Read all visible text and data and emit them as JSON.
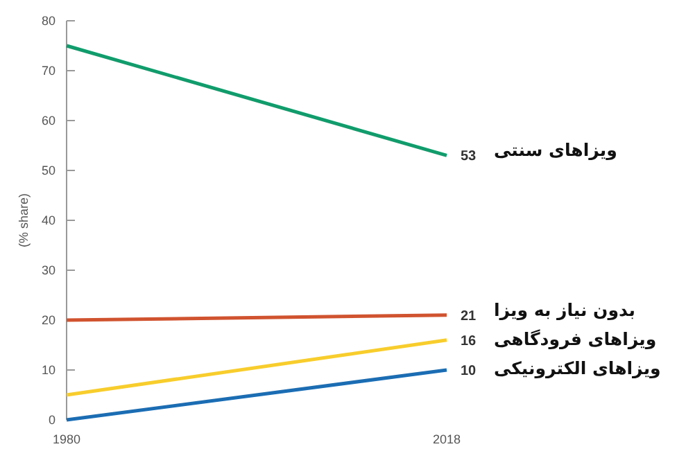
{
  "chart_data": {
    "type": "line",
    "ylabel": "(% share)",
    "x": [
      1980,
      2018
    ],
    "xlim": [
      1980,
      2018
    ],
    "xticks": [
      1980,
      2018
    ],
    "ylim": [
      0,
      80
    ],
    "yticks": [
      0,
      10,
      20,
      30,
      40,
      50,
      60,
      70,
      80
    ],
    "grid": false,
    "marker": "none",
    "line_style": "solid",
    "series": [
      {
        "name": "ویزاهای سنتی",
        "color": "#119c6c",
        "values": [
          75,
          53
        ],
        "value_labels": [
          null,
          "53"
        ]
      },
      {
        "name": "بدون نیاز به ویزا",
        "color": "#d0532f",
        "values": [
          20,
          21
        ],
        "value_labels": [
          null,
          "21"
        ]
      },
      {
        "name": "ویزاهای فرودگاهی",
        "color": "#f8cd2c",
        "values": [
          5,
          16
        ],
        "value_labels": [
          null,
          "16"
        ]
      },
      {
        "name": "ویزاهای الکترونیکی",
        "color": "#1b6db3",
        "values": [
          0,
          10
        ],
        "value_labels": [
          null,
          "10"
        ]
      }
    ]
  }
}
